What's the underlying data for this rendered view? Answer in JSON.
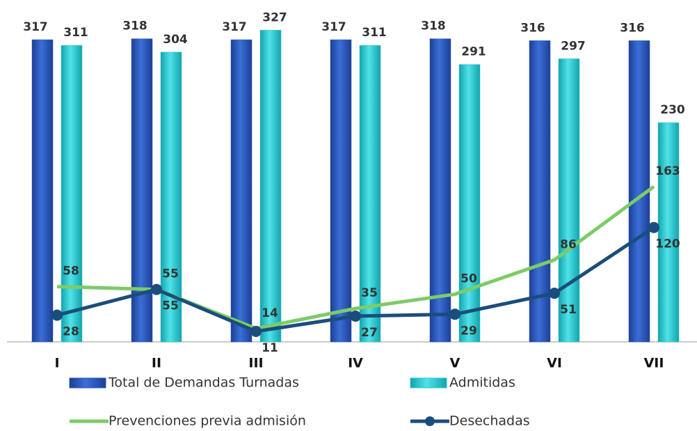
{
  "chart_data": {
    "type": "bar-line",
    "categories": [
      "I",
      "II",
      "III",
      "IV",
      "V",
      "VI",
      "VII"
    ],
    "series": [
      {
        "name": "Total de Demandas Turnadas",
        "type": "bar",
        "color": "#2a56b8",
        "values": [
          317,
          318,
          317,
          317,
          318,
          316,
          316
        ]
      },
      {
        "name": "Admitidas",
        "type": "bar",
        "color": "#2ec6cf",
        "values": [
          311,
          304,
          327,
          311,
          291,
          297,
          230
        ]
      },
      {
        "name": "Prevenciones previa admisión",
        "type": "line",
        "color": "#7dcb68",
        "values": [
          58,
          55,
          14,
          35,
          50,
          86,
          163
        ]
      },
      {
        "name": "Desechadas",
        "type": "line",
        "color": "#1b4d7c",
        "values": [
          28,
          55,
          11,
          27,
          29,
          51,
          120
        ]
      }
    ]
  }
}
